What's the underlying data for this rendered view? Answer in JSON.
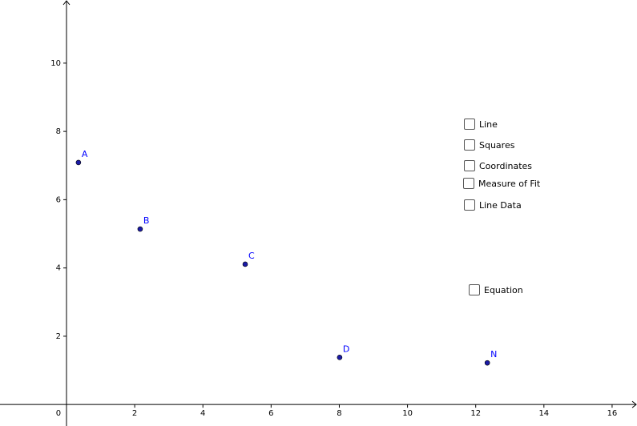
{
  "chart_data": {
    "type": "scatter",
    "x": [
      0.35,
      2.16,
      5.24,
      8.01,
      12.34
    ],
    "values": [
      7.09,
      5.14,
      4.11,
      1.38,
      1.22
    ],
    "point_labels": [
      "A",
      "B",
      "C",
      "D",
      "N"
    ],
    "color": "#1a1aa6",
    "label_color": "#0000ff",
    "xlim": [
      -1.95,
      16.73
    ],
    "ylim": [
      -0.63,
      11.85
    ],
    "xticks": [
      0,
      2,
      4,
      6,
      8,
      10,
      12,
      14,
      16
    ],
    "yticks": [
      2,
      4,
      6,
      8,
      10
    ],
    "grid": false
  },
  "checkboxes": [
    {
      "label": "Line",
      "checked": false
    },
    {
      "label": "Squares",
      "checked": false
    },
    {
      "label": "Coordinates",
      "checked": false
    },
    {
      "label": "Measure of Fit",
      "checked": false
    },
    {
      "label": "Line Data",
      "checked": false
    },
    {
      "label": "Equation",
      "checked": false
    }
  ]
}
